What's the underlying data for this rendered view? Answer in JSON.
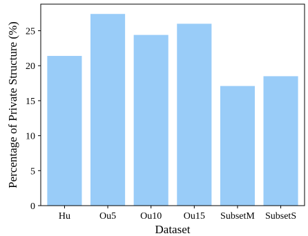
{
  "chart_data": {
    "type": "bar",
    "title": "",
    "xlabel": "Dataset",
    "ylabel": "Percentage of Private Structure (%)",
    "categories": [
      "Hu",
      "Ou5",
      "Ou10",
      "Ou15",
      "SubsetM",
      "SubsetS"
    ],
    "values": [
      21.4,
      27.4,
      24.4,
      26.0,
      17.1,
      18.5
    ],
    "ylim": [
      0,
      28.8
    ],
    "yticks": [
      0,
      5,
      10,
      15,
      20,
      25
    ],
    "grid": false,
    "legend": "none",
    "bar_color": "#99ccf8"
  }
}
